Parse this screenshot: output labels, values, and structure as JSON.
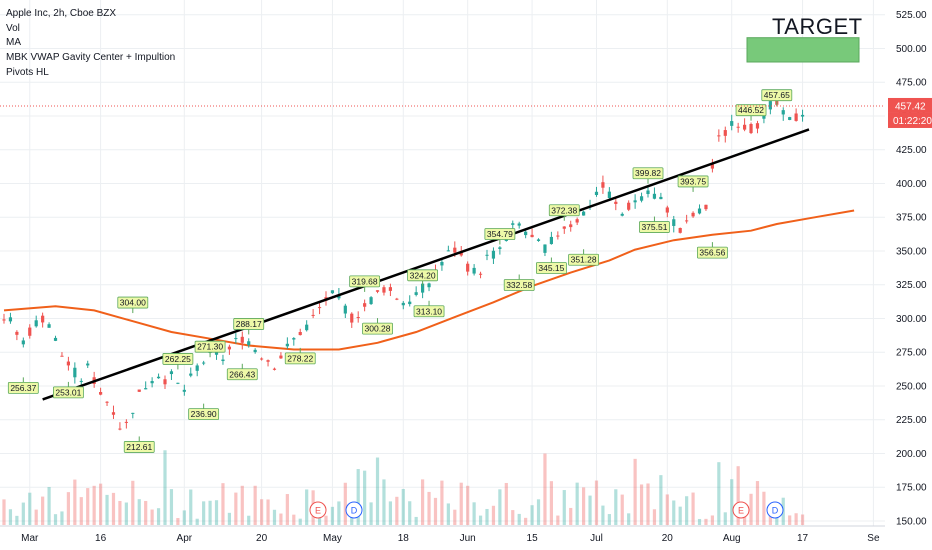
{
  "legend": {
    "title": "Apple Inc, 2h, Cboe BZX",
    "lines": [
      "Vol",
      "MA",
      "MBK VWAP Gavity Center + Impultion",
      "Pivots HL"
    ]
  },
  "annotation": {
    "target_label": "TARGET",
    "target_color": "#78c97a"
  },
  "colors": {
    "up": "#26a69a",
    "down": "#ef5350",
    "ma": "#f0601a",
    "trend": "#000000",
    "pivot_fill": "#eef9a8",
    "pivot_border": "#5ca85c",
    "price_tag": "#ef5350",
    "grid": "#eceff2"
  },
  "chart_data": {
    "type": "candlestick",
    "title": "Apple Inc, 2h, Cboe BZX",
    "y_ticks": [
      "525.00",
      "500.00",
      "475.00",
      "450.00",
      "425.00",
      "400.00",
      "375.00",
      "350.00",
      "325.00",
      "300.00",
      "275.00",
      "250.00",
      "225.00",
      "200.00",
      "175.00",
      "150.00"
    ],
    "ylim": [
      147,
      530
    ],
    "x_ticks": [
      "Mar",
      "16",
      "Apr",
      "20",
      "May",
      "18",
      "Jun",
      "15",
      "Jul",
      "20",
      "Aug",
      "17",
      "Se"
    ],
    "current_price": "457.42",
    "countdown": "01:22:20",
    "price_path": [
      [
        0,
        300
      ],
      [
        1,
        297
      ],
      [
        2,
        280
      ],
      [
        3,
        290
      ],
      [
        4,
        298
      ],
      [
        5,
        302
      ],
      [
        6,
        285
      ],
      [
        7,
        270
      ],
      [
        8,
        263
      ],
      [
        9,
        254
      ],
      [
        10,
        265
      ],
      [
        11,
        248
      ],
      [
        12,
        240
      ],
      [
        13,
        232
      ],
      [
        14,
        215
      ],
      [
        15,
        230
      ],
      [
        16,
        245
      ],
      [
        17,
        252
      ],
      [
        18,
        260
      ],
      [
        19,
        255
      ],
      [
        20,
        258
      ],
      [
        21,
        244
      ],
      [
        22,
        255
      ],
      [
        23,
        266
      ],
      [
        24,
        270
      ],
      [
        25,
        275
      ],
      [
        26,
        270
      ],
      [
        27,
        281
      ],
      [
        28,
        286
      ],
      [
        29,
        283
      ],
      [
        30,
        275
      ],
      [
        31,
        270
      ],
      [
        32,
        265
      ],
      [
        33,
        275
      ],
      [
        34,
        283
      ],
      [
        35,
        290
      ],
      [
        36,
        296
      ],
      [
        37,
        305
      ],
      [
        38,
        314
      ],
      [
        39,
        318
      ],
      [
        40,
        310
      ],
      [
        41,
        300
      ],
      [
        42,
        305
      ],
      [
        43,
        312
      ],
      [
        44,
        318
      ],
      [
        45,
        323
      ],
      [
        46,
        318
      ],
      [
        47,
        312
      ],
      [
        48,
        315
      ],
      [
        49,
        320
      ],
      [
        50,
        325
      ],
      [
        51,
        335
      ],
      [
        52,
        345
      ],
      [
        53,
        352
      ],
      [
        54,
        345
      ],
      [
        55,
        336
      ],
      [
        56,
        333
      ],
      [
        57,
        345
      ],
      [
        58,
        348
      ],
      [
        59,
        356
      ],
      [
        60,
        367
      ],
      [
        61,
        370
      ],
      [
        62,
        360
      ],
      [
        63,
        355
      ],
      [
        64,
        352
      ],
      [
        65,
        360
      ],
      [
        66,
        368
      ],
      [
        67,
        370
      ],
      [
        68,
        375
      ],
      [
        69,
        383
      ],
      [
        70,
        395
      ],
      [
        71,
        398
      ],
      [
        72,
        385
      ],
      [
        73,
        377
      ],
      [
        74,
        385
      ],
      [
        75,
        390
      ],
      [
        76,
        395
      ],
      [
        77,
        390
      ],
      [
        78,
        385
      ],
      [
        79,
        372
      ],
      [
        80,
        362
      ],
      [
        81,
        375
      ],
      [
        82,
        378
      ],
      [
        83,
        383
      ],
      [
        84,
        430
      ],
      [
        85,
        436
      ],
      [
        86,
        448
      ],
      [
        87,
        444
      ],
      [
        88,
        440
      ],
      [
        89,
        445
      ],
      [
        90,
        455
      ],
      [
        91,
        460
      ],
      [
        92,
        450
      ],
      [
        93,
        445
      ],
      [
        94,
        452
      ],
      [
        95,
        458
      ]
    ],
    "series": [
      {
        "name": "MA",
        "points": [
          [
            0,
            306
          ],
          [
            8,
            309
          ],
          [
            14,
            306
          ],
          [
            20,
            298
          ],
          [
            26,
            290
          ],
          [
            32,
            285
          ],
          [
            38,
            280
          ],
          [
            45,
            277
          ],
          [
            52,
            277
          ],
          [
            58,
            282
          ],
          [
            64,
            290
          ],
          [
            70,
            301
          ],
          [
            76,
            312
          ],
          [
            82,
            324
          ],
          [
            88,
            334
          ],
          [
            94,
            343
          ],
          [
            98,
            351
          ],
          [
            104,
            358
          ],
          [
            110,
            362
          ],
          [
            116,
            365
          ],
          [
            120,
            370
          ],
          [
            126,
            375
          ],
          [
            132,
            380
          ]
        ]
      }
    ],
    "trendline": [
      [
        6,
        240
      ],
      [
        125,
        440
      ]
    ],
    "target_zone": [
      490,
      508
    ],
    "pivots": [
      {
        "label": "304.00",
        "i": 20,
        "type": "high"
      },
      {
        "label": "256.37",
        "i": 3,
        "type": "low"
      },
      {
        "label": "253.01",
        "i": 10,
        "type": "low"
      },
      {
        "label": "212.61",
        "i": 21,
        "type": "low"
      },
      {
        "label": "262.25",
        "i": 27,
        "type": "high"
      },
      {
        "label": "271.30",
        "i": 32,
        "type": "high"
      },
      {
        "label": "236.90",
        "i": 31,
        "type": "low"
      },
      {
        "label": "288.17",
        "i": 38,
        "type": "high"
      },
      {
        "label": "266.43",
        "i": 37,
        "type": "low"
      },
      {
        "label": "278.22",
        "i": 46,
        "type": "low"
      },
      {
        "label": "319.68",
        "i": 56,
        "type": "high"
      },
      {
        "label": "300.28",
        "i": 58,
        "type": "low"
      },
      {
        "label": "324.20",
        "i": 65,
        "type": "high"
      },
      {
        "label": "313.10",
        "i": 66,
        "type": "low"
      },
      {
        "label": "354.79",
        "i": 77,
        "type": "high"
      },
      {
        "label": "332.58",
        "i": 80,
        "type": "low"
      },
      {
        "label": "372.38",
        "i": 87,
        "type": "high"
      },
      {
        "label": "345.15",
        "i": 85,
        "type": "low"
      },
      {
        "label": "351.28",
        "i": 90,
        "type": "low"
      },
      {
        "label": "399.82",
        "i": 100,
        "type": "high"
      },
      {
        "label": "375.51",
        "i": 101,
        "type": "low"
      },
      {
        "label": "393.75",
        "i": 107,
        "type": "high"
      },
      {
        "label": "356.56",
        "i": 110,
        "type": "low"
      },
      {
        "label": "446.52",
        "i": 116,
        "type": "high"
      },
      {
        "label": "457.65",
        "i": 120,
        "type": "high"
      }
    ],
    "events": [
      "E",
      "D",
      "E",
      "D"
    ],
    "candle_count": 125
  }
}
